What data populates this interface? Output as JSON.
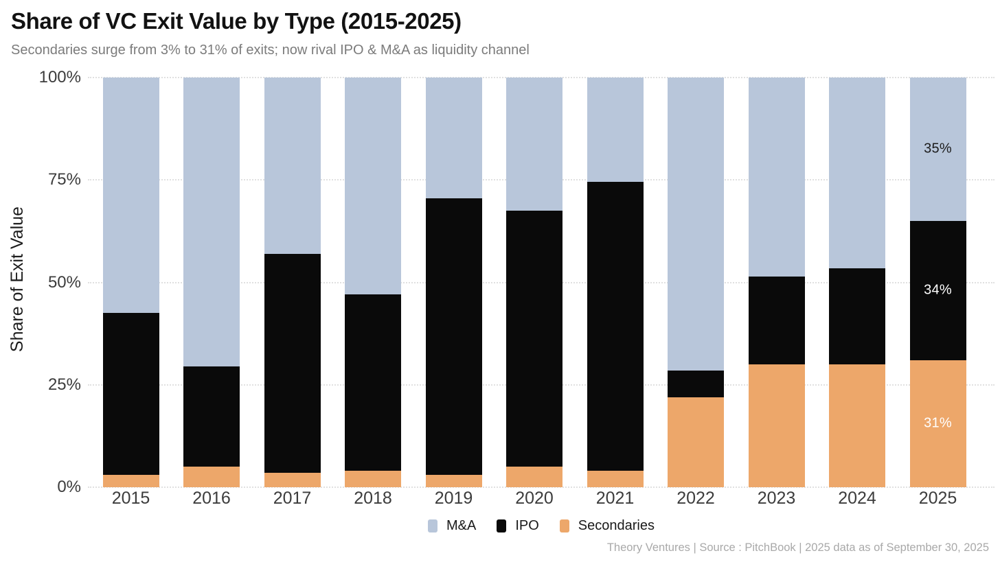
{
  "header": {
    "title": "Share of VC Exit Value by Type (2015-2025)",
    "subtitle": "Secondaries surge from 3% to 31% of exits; now rival IPO & M&A as liquidity channel"
  },
  "footer": {
    "credit": "Theory Ventures | Source : PitchBook | 2025 data as of September 30, 2025"
  },
  "chart_data": {
    "type": "bar",
    "stacked": true,
    "title": "Share of VC Exit Value by Type (2015-2025)",
    "subtitle": "Secondaries surge from 3% to 31% of exits; now rival IPO & M&A as liquidity channel",
    "xlabel": "",
    "ylabel": "Share of Exit Value",
    "ylim": [
      0,
      100
    ],
    "grid": "horizontal-dotted",
    "legend_position": "bottom",
    "yticks": [
      {
        "value": 0,
        "label": "0%"
      },
      {
        "value": 25,
        "label": "25%"
      },
      {
        "value": 50,
        "label": "50%"
      },
      {
        "value": 75,
        "label": "75%"
      },
      {
        "value": 100,
        "label": "100%"
      }
    ],
    "categories": [
      "2015",
      "2016",
      "2017",
      "2018",
      "2019",
      "2020",
      "2021",
      "2022",
      "2023",
      "2024",
      "2025"
    ],
    "series": [
      {
        "name": "M&A",
        "color": "#b8c6da",
        "values": [
          57.5,
          70.5,
          43,
          53,
          29.5,
          32.5,
          25.5,
          71.5,
          48.5,
          46.5,
          35
        ]
      },
      {
        "name": "IPO",
        "color": "#0a0a0a",
        "values": [
          39.5,
          24.5,
          53.5,
          43,
          67.5,
          62.5,
          70.5,
          6.5,
          21.5,
          23.5,
          34
        ]
      },
      {
        "name": "Secondaries",
        "color": "#eda76a",
        "values": [
          3,
          5,
          3.5,
          4,
          3,
          5,
          4,
          22,
          30,
          30,
          31
        ]
      }
    ],
    "annotations": [
      {
        "category": "2025",
        "series": "M&A",
        "text": "35%",
        "color": "#1c1c1c"
      },
      {
        "category": "2025",
        "series": "IPO",
        "text": "34%",
        "color": "#ffffff"
      },
      {
        "category": "2025",
        "series": "Secondaries",
        "text": "31%",
        "color": "#ffffff"
      }
    ]
  }
}
